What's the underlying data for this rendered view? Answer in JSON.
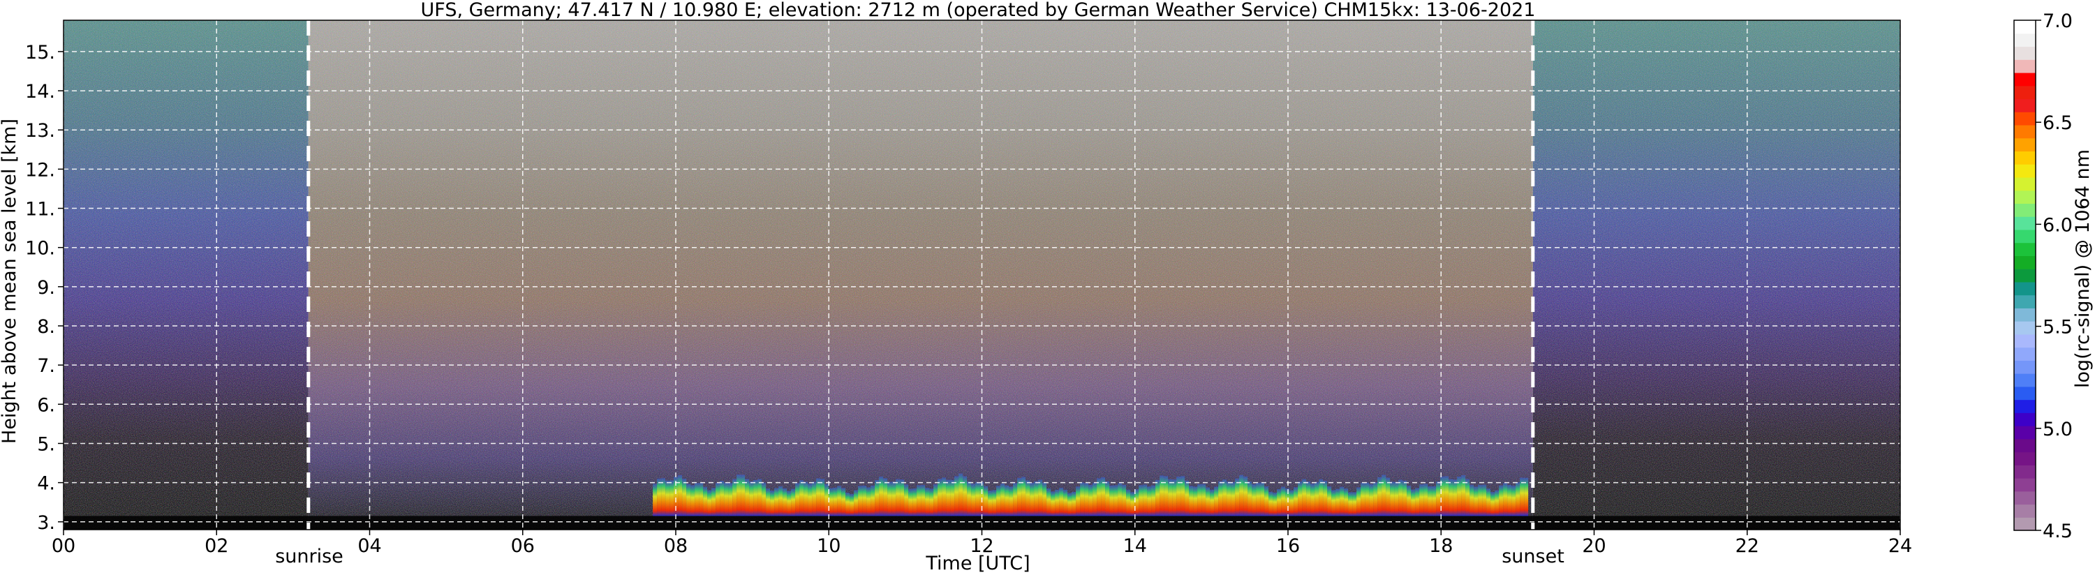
{
  "chart_data": {
    "type": "heatmap",
    "title": "UFS, Germany; 47.417 N / 10.980 E; elevation: 2712 m  (operated by German Weather Service)    CHM15kx: 13-06-2021",
    "xlabel": "Time [UTC]",
    "ylabel": "Height above mean sea level [km]",
    "xlim": [
      0,
      24
    ],
    "ylim": [
      2.8,
      15.8
    ],
    "x_ticks": [
      0,
      2,
      4,
      6,
      8,
      10,
      12,
      14,
      16,
      18,
      20,
      22,
      24
    ],
    "x_tick_labels": [
      "00",
      "02",
      "04",
      "06",
      "08",
      "10",
      "12",
      "14",
      "16",
      "18",
      "20",
      "22",
      "24"
    ],
    "y_ticks": [
      3,
      4,
      5,
      6,
      7,
      8,
      9,
      10,
      11,
      12,
      13,
      14,
      15
    ],
    "y_tick_labels": [
      "3.",
      "4.",
      "5.",
      "6.",
      "7.",
      "8.",
      "9.",
      "10.",
      "11.",
      "12.",
      "13.",
      "14.",
      "15."
    ],
    "grid": true,
    "annotations": [
      {
        "text": "sunrise",
        "x": 3.2
      },
      {
        "text": "sunset",
        "x": 19.2
      }
    ],
    "colorbar": {
      "label": "log(rc-signal) @ 1064 nm",
      "range": [
        4.5,
        7.0
      ],
      "ticks": [
        4.5,
        5.0,
        5.5,
        6.0,
        6.5,
        7.0
      ],
      "tick_labels": [
        "4.5",
        "5.0",
        "5.5",
        "6.0",
        "6.5",
        "7.0"
      ],
      "colors": [
        "#b39ab0",
        "#a77ea6",
        "#9a5f9c",
        "#8e3f93",
        "#822a8c",
        "#761486",
        "#6a0a8a",
        "#5a00a8",
        "#3d00c8",
        "#1f1ee6",
        "#2a5cf2",
        "#4f7ff7",
        "#7596f9",
        "#90a8fb",
        "#a9b8fc",
        "#a7c8f0",
        "#7fb9d9",
        "#3fa7b0",
        "#13948a",
        "#0c9a3d",
        "#14ad25",
        "#1cc23a",
        "#36d86e",
        "#58e39a",
        "#82ec77",
        "#b1f455",
        "#d5f230",
        "#f4e810",
        "#ffcc00",
        "#ffa200",
        "#ff7a00",
        "#ff4a00",
        "#f01e1e",
        "#ee1f0e",
        "#ff0000",
        "#f0b8b8",
        "#e8e0e0",
        "#f2f2f2",
        "#ffffff"
      ]
    }
  }
}
